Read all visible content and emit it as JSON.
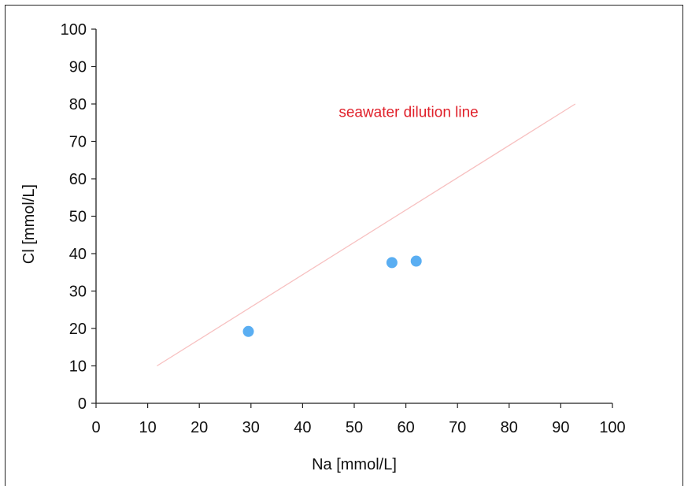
{
  "chart_data": {
    "type": "scatter",
    "xlabel": "Na [mmol/L]",
    "ylabel": "Cl [mmol/L]",
    "xlim": [
      0,
      100
    ],
    "ylim": [
      0,
      100
    ],
    "x_ticks": [
      "0",
      "10",
      "20",
      "30",
      "40",
      "50",
      "60",
      "70",
      "80",
      "90",
      "100"
    ],
    "y_ticks": [
      "0",
      "10",
      "20",
      "30",
      "40",
      "50",
      "60",
      "70",
      "80",
      "90",
      "100"
    ],
    "grid": false,
    "legend": "none",
    "series": [
      {
        "x": [
          29.5,
          57.3,
          62.0
        ],
        "y": [
          19.2,
          37.6,
          38.0
        ],
        "color": "#5aaef2"
      }
    ],
    "lines": [
      {
        "x": [
          11.8,
          92.8
        ],
        "y": [
          10,
          80
        ],
        "color": "#f7c0c0"
      }
    ],
    "annotations": [
      {
        "text": "seawater dilution line",
        "color": "#e0202a",
        "x": 47,
        "y": 76.5
      }
    ]
  }
}
